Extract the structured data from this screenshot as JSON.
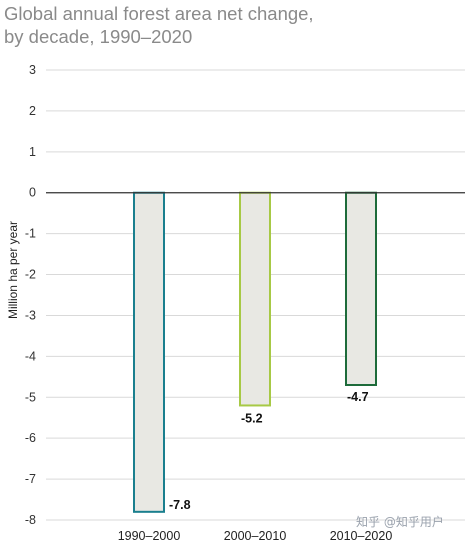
{
  "chart_data": {
    "type": "bar",
    "title_lines": [
      "Global annual forest area net change,",
      "by decade, 1990–2020"
    ],
    "xlabel": "",
    "ylabel": "Million ha per year",
    "categories": [
      "1990–2000",
      "2000–2010",
      "2010–2020"
    ],
    "values": [
      -7.8,
      -5.2,
      -4.7
    ],
    "data_labels": [
      "-7.8",
      "-5.2",
      "-4.7"
    ],
    "ylim": [
      -8,
      3
    ],
    "yticks": [
      3,
      2,
      1,
      0,
      -1,
      -2,
      -3,
      -4,
      -5,
      -6,
      -7,
      -8
    ],
    "grid": true,
    "bar_fill": "#e8e8e3",
    "bar_colors": [
      "#1a7f8e",
      "#a7c945",
      "#1d6b3a"
    ]
  },
  "watermark": "知乎 @知乎用户"
}
